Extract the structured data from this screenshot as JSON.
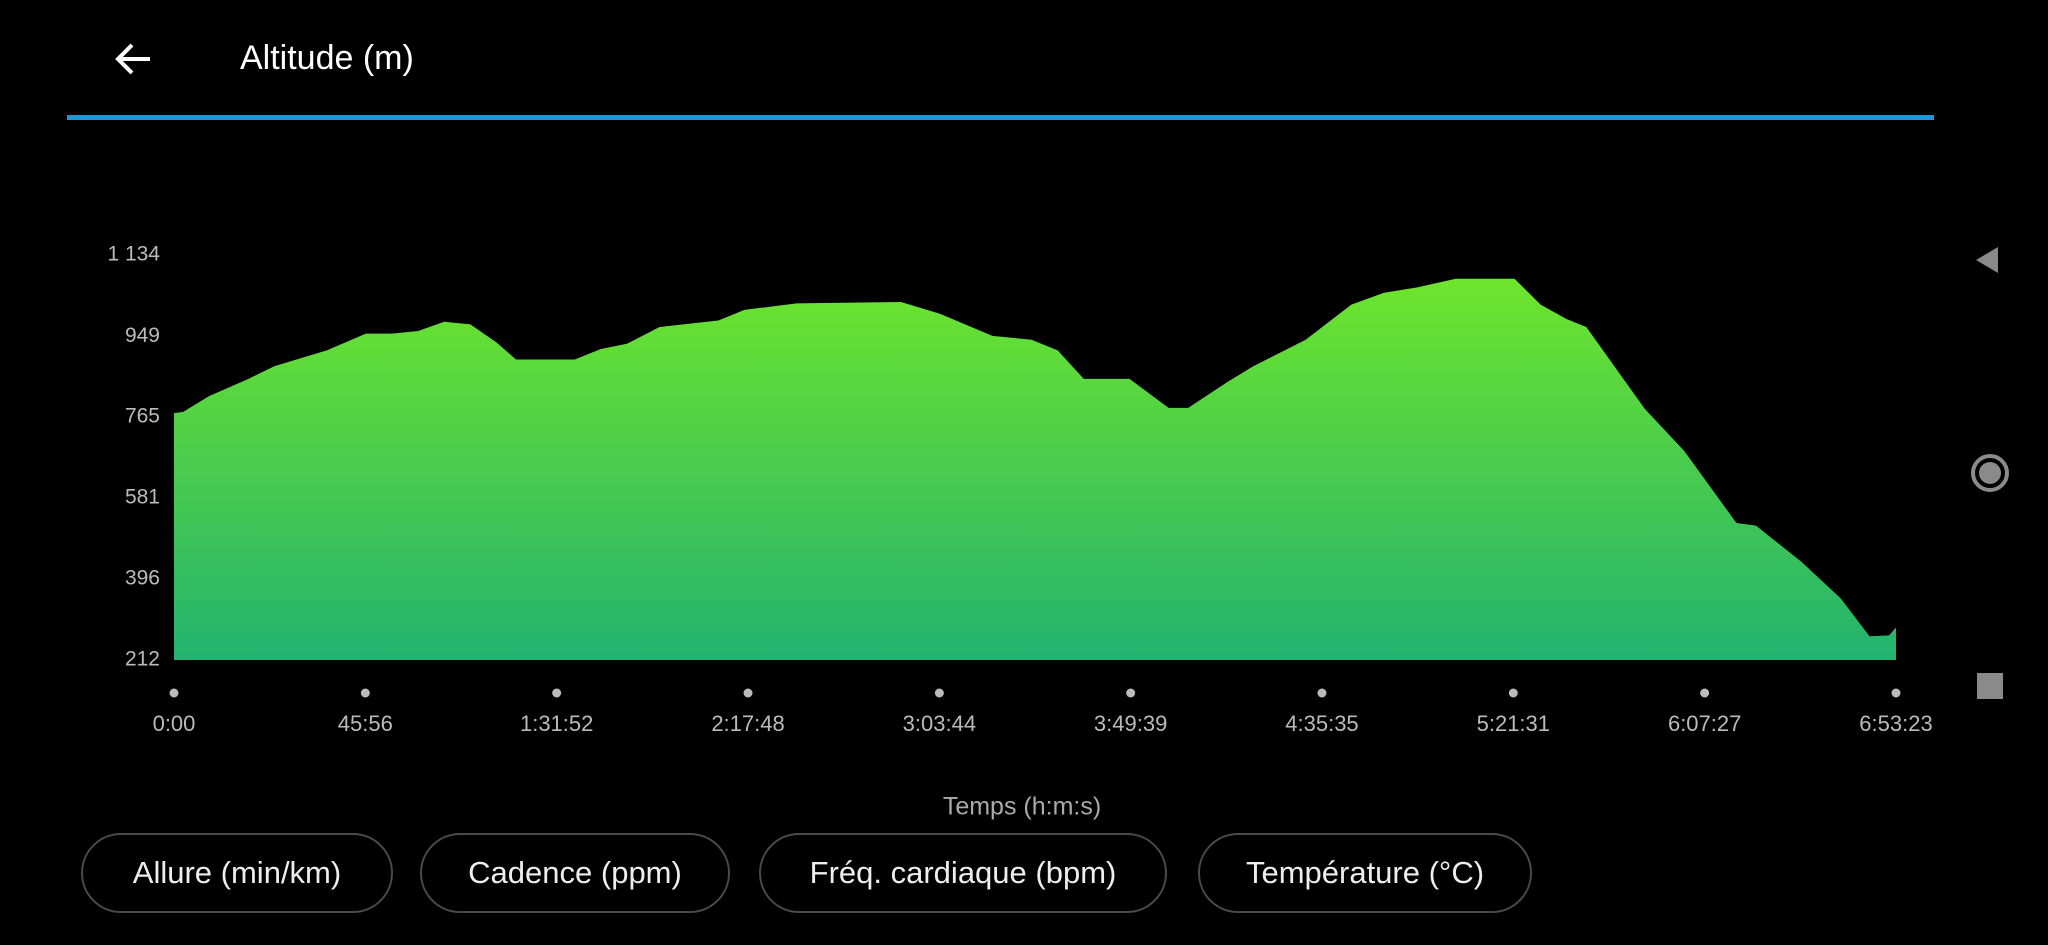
{
  "header": {
    "title": "Altitude (m)"
  },
  "chart_data": {
    "type": "area",
    "x_label": "Temps (h:m:s)",
    "x": [
      0,
      132,
      508,
      1072,
      1448,
      2200,
      2764,
      3140,
      3516,
      3892,
      4268,
      4644,
      4926,
      5772,
      6148,
      6524,
      6994,
      7840,
      8216,
      8968,
      10472,
      11036,
      11788,
      12352,
      12728,
      13104,
      13762,
      14326,
      14608,
      15172,
      15548,
      16300,
      16958,
      17428,
      17898,
      18462,
      19308,
      19684,
      20060,
      20342,
      21188,
      21752,
      22504,
      22786,
      23444,
      24008,
      24421,
      24703,
      24803
    ],
    "values": [
      774,
      777,
      813,
      852,
      881,
      917,
      955,
      955,
      961,
      982,
      976,
      935,
      896,
      896,
      920,
      932,
      970,
      985,
      1009,
      1024,
      1027,
      1000,
      950,
      941,
      917,
      852,
      852,
      786,
      786,
      845,
      881,
      941,
      1021,
      1048,
      1060,
      1080,
      1080,
      1021,
      988,
      970,
      783,
      688,
      524,
      518,
      435,
      352,
      266,
      268,
      286
    ],
    "gradient": [
      "#6ee52c",
      "#23b26f"
    ],
    "xlim": [
      0,
      24803
    ],
    "ylim": [
      212,
      1134
    ],
    "xticks": [
      {
        "value": 0,
        "label": "0:00"
      },
      {
        "value": 2756,
        "label": "45:56"
      },
      {
        "value": 5512,
        "label": "1:31:52"
      },
      {
        "value": 8268,
        "label": "2:17:48"
      },
      {
        "value": 11024,
        "label": "3:03:44"
      },
      {
        "value": 13779,
        "label": "3:49:39"
      },
      {
        "value": 16535,
        "label": "4:35:35"
      },
      {
        "value": 19291,
        "label": "5:21:31"
      },
      {
        "value": 22047,
        "label": "6:07:27"
      },
      {
        "value": 24803,
        "label": "6:53:23"
      }
    ],
    "yticks": [
      212,
      396,
      581,
      765,
      949,
      {
        "value": 1134,
        "label": "1 134"
      }
    ]
  },
  "buttons": [
    "Allure (min/km)",
    "Cadence (ppm)",
    "Fréq. cardiaque (bpm)",
    "Température (°C)"
  ]
}
